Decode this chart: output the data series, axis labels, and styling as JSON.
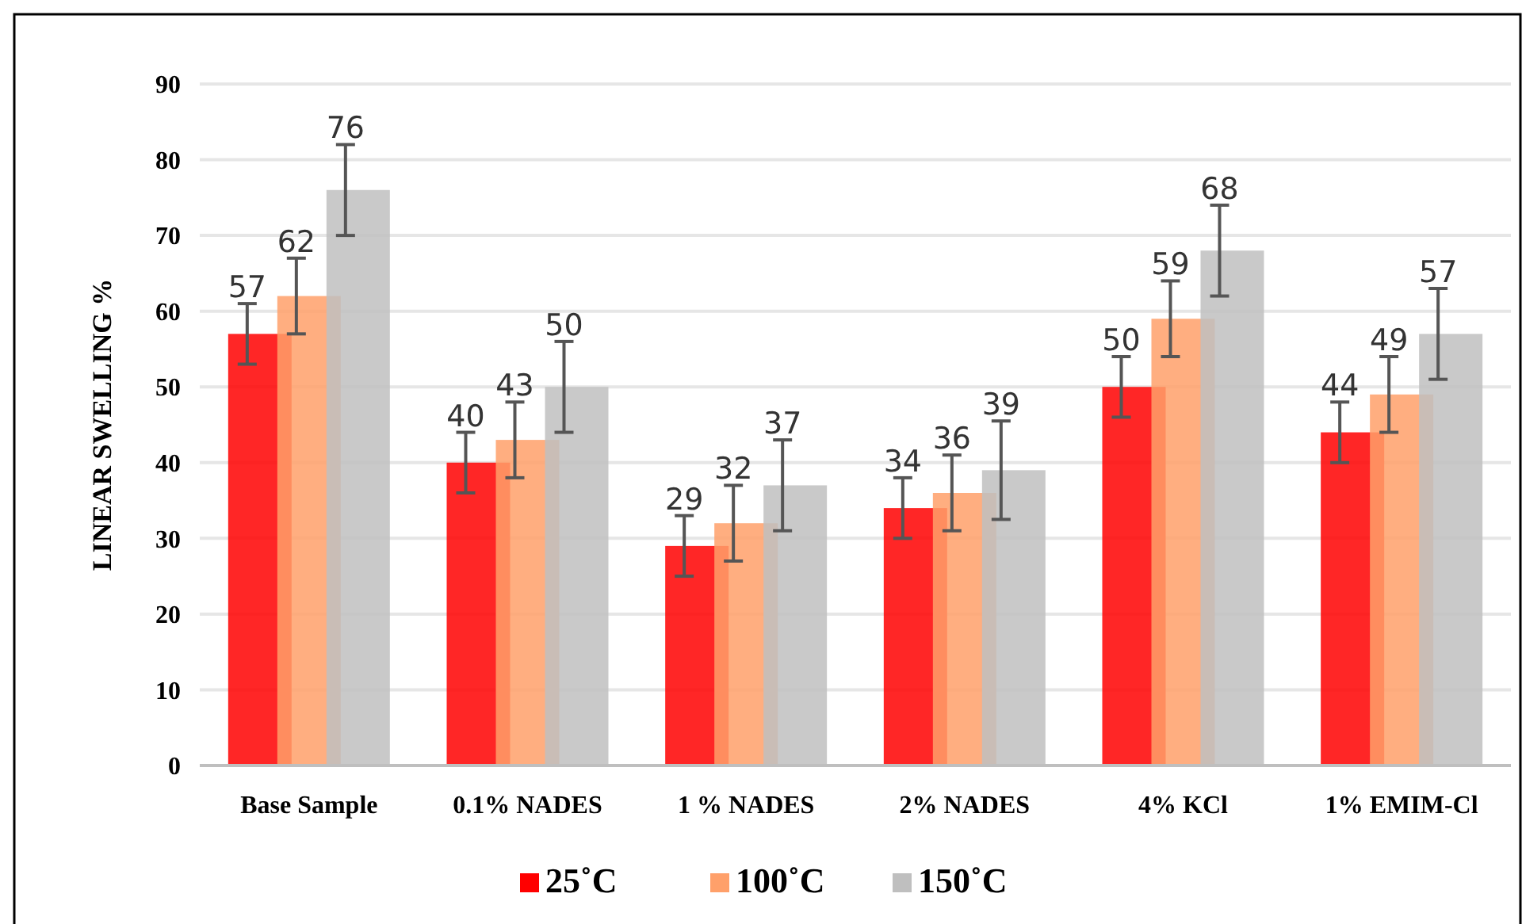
{
  "chart_data": {
    "type": "bar",
    "ylabel": "LINEAR SWELLING %",
    "categories": [
      "Base Sample",
      "0.1% NADES",
      "1 % NADES",
      "2% NADES",
      "4% KCl",
      "1% EMIM-Cl"
    ],
    "series": [
      {
        "name": "25˚C",
        "color": "#ff0000",
        "values": [
          57,
          40,
          29,
          34,
          50,
          44
        ],
        "errors": [
          4,
          4,
          4,
          4,
          4,
          4
        ]
      },
      {
        "name": "100˚C",
        "color": "#ffa06a",
        "values": [
          62,
          43,
          32,
          36,
          59,
          49
        ],
        "errors": [
          5,
          5,
          5,
          5,
          5,
          5
        ]
      },
      {
        "name": "150˚C",
        "color": "#bfbfbf",
        "values": [
          76,
          50,
          37,
          39,
          68,
          57
        ],
        "errors": [
          6,
          6,
          6,
          6.5,
          6,
          6
        ]
      }
    ],
    "ylim": [
      0,
      90
    ],
    "yticks": [
      0,
      10,
      20,
      30,
      40,
      50,
      60,
      70,
      80,
      90
    ],
    "grid": "y",
    "legend": "bottom",
    "data_labels": true
  }
}
